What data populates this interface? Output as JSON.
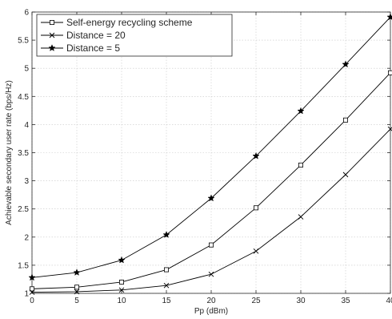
{
  "chart_data": {
    "type": "line",
    "title": "",
    "xlabel": "Pp (dBm)",
    "ylabel": "Achievable secondary user rate (bps/Hz)",
    "x": [
      0,
      5,
      10,
      15,
      20,
      25,
      30,
      35,
      40
    ],
    "xlim": [
      0,
      40
    ],
    "ylim": [
      1,
      6
    ],
    "xticks": [
      "0",
      "5",
      "10",
      "15",
      "20",
      "25",
      "30",
      "35",
      "40"
    ],
    "yticks": [
      "1",
      "1.5",
      "2",
      "2.5",
      "3",
      "3.5",
      "4",
      "4.5",
      "5",
      "5.5",
      "6"
    ],
    "grid": true,
    "legend_position": "top-left",
    "series": [
      {
        "name": "Self-energy recycling scheme",
        "marker": "square",
        "values": [
          1.08,
          1.11,
          1.2,
          1.42,
          1.86,
          2.52,
          3.28,
          4.08,
          4.92
        ]
      },
      {
        "name": "Distance = 20",
        "marker": "x",
        "values": [
          1.02,
          1.03,
          1.06,
          1.14,
          1.34,
          1.75,
          2.36,
          3.11,
          3.92
        ]
      },
      {
        "name": "Distance = 5",
        "marker": "star",
        "values": [
          1.28,
          1.37,
          1.59,
          2.04,
          2.69,
          3.44,
          4.24,
          5.07,
          5.91
        ]
      }
    ]
  }
}
